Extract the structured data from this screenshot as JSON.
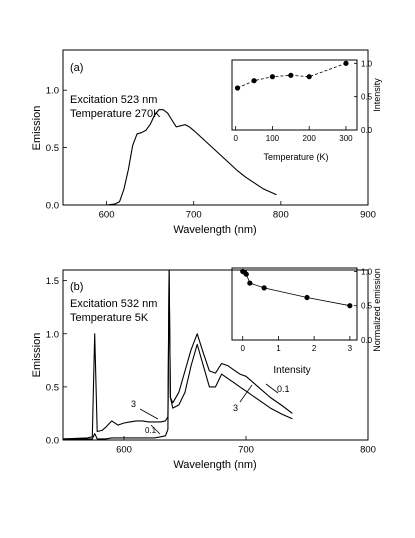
{
  "chart_data": [
    {
      "type": "line",
      "panel_label": "(a)",
      "annotations": [
        "Excitation 523 nm",
        "Temperature 270K"
      ],
      "xlabel": "Wavelength (nm)",
      "ylabel": "Emission",
      "xlim": [
        550,
        900
      ],
      "ylim": [
        0,
        1.35
      ],
      "xticks": [
        600,
        700,
        800,
        900
      ],
      "yticks": [
        0.0,
        0.5,
        1.0
      ],
      "x": [
        550,
        600,
        610,
        615,
        620,
        625,
        630,
        635,
        640,
        645,
        650,
        655,
        660,
        665,
        670,
        675,
        680,
        685,
        690,
        695,
        700,
        710,
        720,
        730,
        740,
        750,
        760,
        770,
        780,
        795
      ],
      "series": [
        {
          "values": [
            0.0,
            0.0,
            0.01,
            0.03,
            0.14,
            0.31,
            0.52,
            0.62,
            0.63,
            0.65,
            0.7,
            0.78,
            0.83,
            0.83,
            0.8,
            0.74,
            0.68,
            0.69,
            0.7,
            0.68,
            0.65,
            0.58,
            0.51,
            0.44,
            0.37,
            0.3,
            0.24,
            0.19,
            0.14,
            0.09
          ]
        }
      ],
      "inset": {
        "type": "line",
        "xlabel": "Temperature (K)",
        "ylabel": "Intensity",
        "xlim": [
          -10,
          330
        ],
        "ylim": [
          0,
          1.05
        ],
        "xticks": [
          0,
          100,
          200,
          300
        ],
        "yticks": [
          0.0,
          0.5,
          1.0
        ],
        "x": [
          5,
          50,
          100,
          150,
          200,
          300
        ],
        "values": [
          0.63,
          0.74,
          0.8,
          0.82,
          0.8,
          1.0
        ],
        "line_style": "dashed"
      }
    },
    {
      "type": "line",
      "panel_label": "(b)",
      "annotations": [
        "Excitation 532 nm",
        "Temperature 5K"
      ],
      "xlabel": "Wavelength (nm)",
      "ylabel": "Emission",
      "xlim": [
        550,
        800
      ],
      "ylim": [
        0,
        1.6
      ],
      "xticks": [
        600,
        700,
        800
      ],
      "yticks": [
        0.0,
        0.5,
        1.0,
        1.5
      ],
      "x": [
        550,
        570,
        574,
        576,
        578,
        582,
        585,
        590,
        595,
        600,
        605,
        610,
        615,
        620,
        625,
        630,
        634,
        636,
        637,
        638,
        640,
        645,
        650,
        655,
        660,
        665,
        670,
        675,
        680,
        685,
        690,
        695,
        700,
        710,
        720,
        730,
        738
      ],
      "series": [
        {
          "name": "3",
          "values": [
            0.01,
            0.02,
            0.03,
            1.0,
            0.08,
            0.09,
            0.12,
            0.18,
            0.14,
            0.16,
            0.17,
            0.18,
            0.18,
            0.17,
            0.17,
            0.17,
            0.18,
            0.22,
            1.6,
            0.4,
            0.3,
            0.33,
            0.45,
            0.7,
            0.9,
            0.7,
            0.5,
            0.5,
            0.62,
            0.58,
            0.54,
            0.5,
            0.46,
            0.38,
            0.3,
            0.24,
            0.2
          ]
        },
        {
          "name": "0.1",
          "values": [
            0.01,
            0.01,
            0.01,
            0.06,
            0.01,
            0.01,
            0.01,
            0.02,
            0.02,
            0.02,
            0.02,
            0.02,
            0.02,
            0.02,
            0.02,
            0.03,
            0.04,
            0.1,
            1.6,
            0.4,
            0.35,
            0.45,
            0.65,
            0.85,
            1.0,
            0.82,
            0.65,
            0.63,
            0.72,
            0.7,
            0.66,
            0.62,
            0.6,
            0.5,
            0.4,
            0.32,
            0.25
          ]
        }
      ],
      "curve_labels": [
        "3",
        "0.1",
        "3",
        "0.1"
      ],
      "inset": {
        "type": "line",
        "xlabel": "Intensity",
        "ylabel": "Normalized emission",
        "xlim": [
          -0.3,
          3.2
        ],
        "ylim": [
          0,
          1.05
        ],
        "xticks": [
          0,
          1,
          2,
          3
        ],
        "yticks": [
          0.0,
          0.5,
          1.0
        ],
        "x": [
          0.0,
          0.05,
          0.1,
          0.2,
          0.6,
          1.8,
          3.0
        ],
        "values": [
          1.0,
          0.99,
          0.96,
          0.83,
          0.76,
          0.62,
          0.5
        ],
        "line_style": "solid"
      }
    }
  ]
}
